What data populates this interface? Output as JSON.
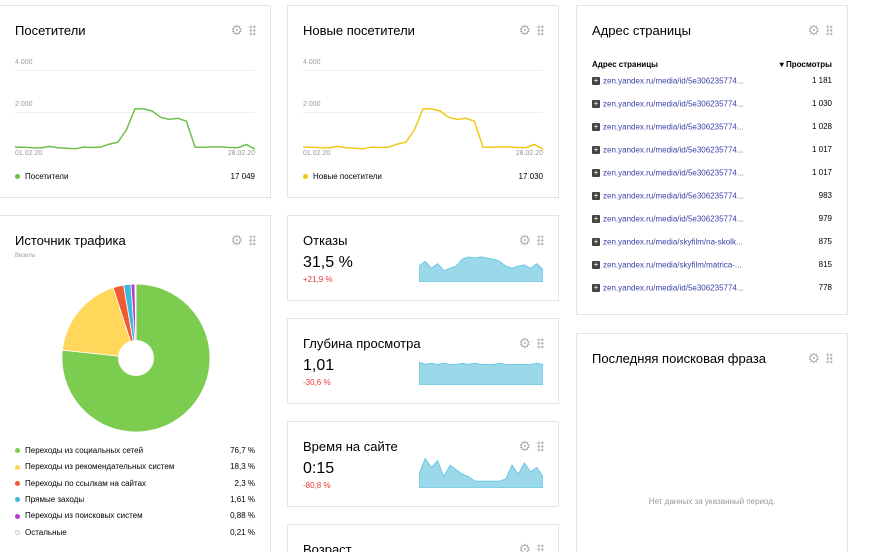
{
  "visitors": {
    "title": "Посетители",
    "tick_4000": "4 000",
    "tick_2000": "2 000",
    "date_start": "01.02.20",
    "date_end": "28.02.20",
    "legend_label": "Посетители",
    "legend_value": "17 049",
    "color": "#6cc04a",
    "series": [
      330,
      320,
      300,
      290,
      360,
      300,
      270,
      250,
      330,
      310,
      330,
      470,
      560,
      1150,
      2150,
      2150,
      2050,
      1750,
      1650,
      1700,
      1560,
      330,
      320,
      340,
      340,
      310,
      300,
      450,
      230
    ]
  },
  "new_visitors": {
    "title": "Новые посетители",
    "tick_4000": "4 000",
    "tick_2000": "2 000",
    "date_start": "01.02.20",
    "date_end": "28.02.20",
    "legend_label": "Новые посетители",
    "legend_value": "17 030",
    "color": "#f2c816",
    "series": [
      330,
      320,
      300,
      290,
      360,
      300,
      270,
      250,
      330,
      310,
      330,
      470,
      560,
      1150,
      2150,
      2150,
      2050,
      1750,
      1650,
      1700,
      1560,
      330,
      320,
      340,
      340,
      310,
      300,
      450,
      230
    ]
  },
  "pages": {
    "title": "Адрес страницы",
    "col_url": "Адрес страницы",
    "col_views": "▾ Просмотры",
    "rows": [
      {
        "url": "zen.yandex.ru/media/id/5e306235774...",
        "views": "1 181"
      },
      {
        "url": "zen.yandex.ru/media/id/5e306235774...",
        "views": "1 030"
      },
      {
        "url": "zen.yandex.ru/media/id/5e306235774...",
        "views": "1 028"
      },
      {
        "url": "zen.yandex.ru/media/id/5e306235774...",
        "views": "1 017"
      },
      {
        "url": "zen.yandex.ru/media/id/5e306235774...",
        "views": "1 017"
      },
      {
        "url": "zen.yandex.ru/media/id/5e306235774...",
        "views": "983"
      },
      {
        "url": "zen.yandex.ru/media/id/5e306235774...",
        "views": "979"
      },
      {
        "url": "zen.yandex.ru/media/skyfilm/na-skolk...",
        "views": "875"
      },
      {
        "url": "zen.yandex.ru/media/skyfilm/matrica-...",
        "views": "815"
      },
      {
        "url": "zen.yandex.ru/media/id/5e306235774...",
        "views": "778"
      }
    ]
  },
  "traffic": {
    "title": "Источник трафика",
    "subtitle": "Визиты",
    "items": [
      {
        "label": "Переходы из социальных сетей",
        "pct": "76,7 %",
        "value": 76.7,
        "color": "#7ccc4f"
      },
      {
        "label": "Переходы из рекомендательных систем",
        "pct": "18,3 %",
        "value": 18.3,
        "color": "#ffd75a"
      },
      {
        "label": "Переходы по ссылкам на сайтах",
        "pct": "2,3 %",
        "value": 2.3,
        "color": "#ef5a32"
      },
      {
        "label": "Прямые заходы",
        "pct": "1,61 %",
        "value": 1.61,
        "color": "#3fb7df"
      },
      {
        "label": "Переходы из поисковых систем",
        "pct": "0,88 %",
        "value": 0.88,
        "color": "#b53fc9"
      },
      {
        "label": "Остальные",
        "pct": "0,21 %",
        "value": 0.21,
        "color": "#ffffff"
      }
    ]
  },
  "bounce": {
    "title": "Отказы",
    "value": "31,5 %",
    "delta": "+21,9 %",
    "series": [
      14,
      18,
      12,
      16,
      10,
      12,
      14,
      20,
      22,
      21,
      22,
      21,
      20,
      18,
      14,
      12,
      14,
      15,
      12,
      16,
      11
    ]
  },
  "depth": {
    "title": "Глубина просмотра",
    "value": "1,01",
    "delta": "-30,6 %",
    "series": [
      20,
      18,
      19,
      18,
      19,
      18,
      18,
      19,
      18,
      19,
      18,
      18,
      18,
      19,
      18,
      18,
      18,
      18,
      18,
      19,
      18
    ]
  },
  "time": {
    "title": "Время на сайте",
    "value": "0:15",
    "delta": "-80,8 %",
    "series": [
      12,
      26,
      18,
      24,
      10,
      20,
      16,
      12,
      10,
      6,
      6,
      6,
      6,
      6,
      8,
      20,
      12,
      22,
      14,
      18,
      10
    ]
  },
  "age": {
    "title": "Возраст"
  },
  "search": {
    "title": "Последняя поисковая фраза",
    "empty": "Нет данных за указанный период."
  },
  "spark_color": "#9ad8ea",
  "spark_stroke": "#5cc3e3"
}
